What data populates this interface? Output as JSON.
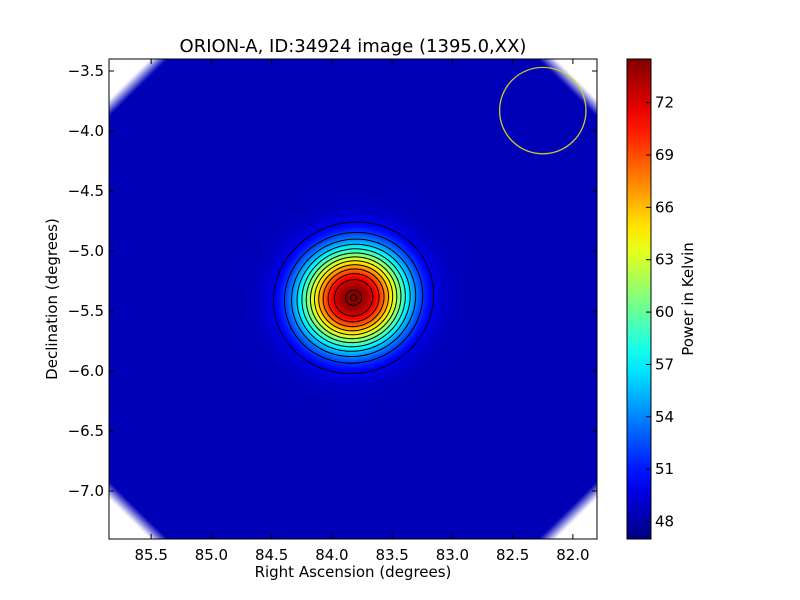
{
  "chart_data": {
    "type": "heatmap",
    "title": "ORION-A, ID:34924 image (1395.0,XX)",
    "xlabel": "Right Ascension (degrees)",
    "ylabel": "Declination (degrees)",
    "colorbar_label": "Power in Kelvin",
    "colormap": "jet",
    "xlim": [
      85.85,
      81.8
    ],
    "ylim": [
      -7.4,
      -3.4
    ],
    "x_ticks": [
      85.5,
      85.0,
      84.5,
      84.0,
      83.5,
      83.0,
      82.5,
      82.0
    ],
    "x_tick_labels": [
      "85.5",
      "85.0",
      "84.5",
      "84.0",
      "83.5",
      "83.0",
      "82.5",
      "82.0"
    ],
    "y_ticks": [
      -3.5,
      -4.0,
      -4.5,
      -5.0,
      -5.5,
      -6.0,
      -6.5,
      -7.0
    ],
    "y_tick_labels": [
      "−3.5",
      "−4.0",
      "−4.5",
      "−5.0",
      "−5.5",
      "−6.0",
      "−6.5",
      "−7.0"
    ],
    "colorbar_range": [
      47.0,
      74.5
    ],
    "colorbar_ticks": [
      48,
      51,
      54,
      57,
      60,
      63,
      66,
      69,
      72
    ],
    "colorbar_tick_labels": [
      "48",
      "51",
      "54",
      "57",
      "60",
      "63",
      "66",
      "69",
      "72"
    ],
    "source_peak": {
      "ra": 83.82,
      "dec": -5.39,
      "value": 74.3
    },
    "background_level": 48.5,
    "contour_levels": [
      50,
      52,
      54,
      56,
      58,
      60,
      62,
      64,
      66,
      68,
      70,
      72,
      74
    ],
    "beam_circle": {
      "ra": 82.25,
      "dec": -3.83,
      "radius_deg": 0.36,
      "color": "#c8c832"
    },
    "grid": false
  }
}
